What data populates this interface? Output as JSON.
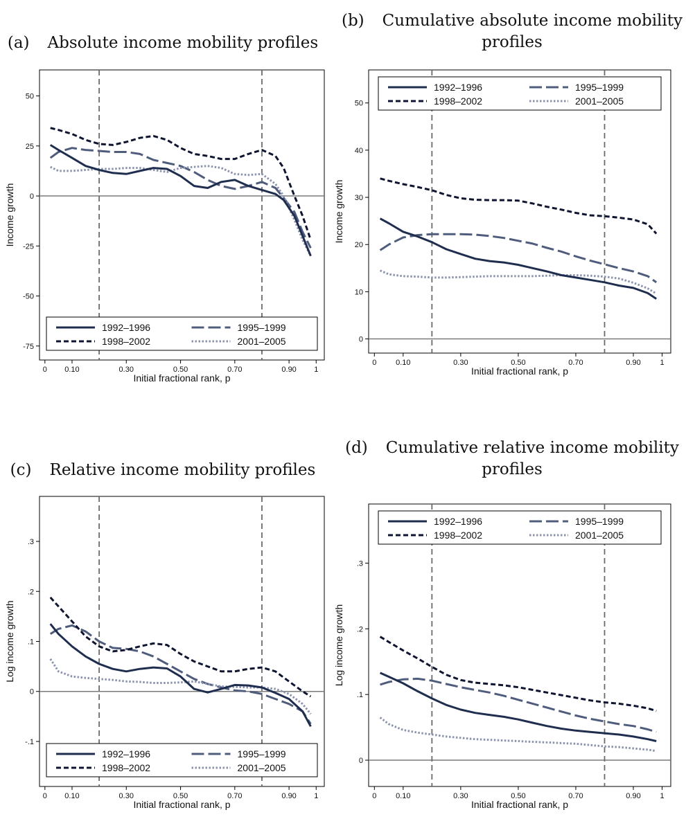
{
  "colors": {
    "1992-1996": "#1f2d4f",
    "1995-1999": "#4f5c7c",
    "1998-2002": "#0f1530",
    "2001-2005": "#8b93ad",
    "zero_line": "#7a7a7a",
    "vline": "#6a6a6a"
  },
  "chart_data": [
    {
      "type": "line",
      "panel": "(a)",
      "title": "Absolute income mobility profiles",
      "xlabel": "Initial fractional rank, p",
      "ylabel": "Income growth",
      "xlim": [
        -0.02,
        1.03
      ],
      "ylim": [
        -82,
        63
      ],
      "xticks": [
        0,
        0.1,
        0.3,
        0.5,
        0.7,
        0.9,
        1
      ],
      "xtick_labels": [
        "0",
        "0.10",
        "0.30",
        "0.50",
        "0.70",
        "0.90",
        "1"
      ],
      "yticks": [
        50,
        25,
        0,
        -25,
        -50,
        -75
      ],
      "ytick_labels": [
        "50",
        "25",
        "0",
        "-25",
        "-50",
        "-75"
      ],
      "zero_line": 0,
      "vlines": [
        0.2,
        0.8
      ],
      "legend": "bottom",
      "series": [
        {
          "name": "1992–1996",
          "style": "solid",
          "x": [
            0.02,
            0.05,
            0.1,
            0.15,
            0.2,
            0.25,
            0.3,
            0.35,
            0.4,
            0.45,
            0.5,
            0.55,
            0.6,
            0.65,
            0.7,
            0.75,
            0.8,
            0.85,
            0.88,
            0.92,
            0.95,
            0.98
          ],
          "y": [
            25.5,
            23,
            19,
            15,
            13,
            11.5,
            11,
            12.5,
            14,
            13.5,
            10,
            5,
            4,
            7,
            8,
            5,
            3,
            1,
            -2,
            -10,
            -20,
            -30
          ]
        },
        {
          "name": "1995–1999",
          "style": "longdash",
          "x": [
            0.02,
            0.05,
            0.1,
            0.15,
            0.2,
            0.25,
            0.3,
            0.35,
            0.4,
            0.45,
            0.5,
            0.55,
            0.6,
            0.65,
            0.7,
            0.75,
            0.8,
            0.85,
            0.88,
            0.92,
            0.95,
            0.98
          ],
          "y": [
            19,
            22,
            24,
            23,
            22.5,
            22,
            22,
            21,
            18,
            16.5,
            15,
            12,
            8,
            5,
            3.5,
            5,
            7,
            4,
            -1,
            -8,
            -18,
            -26
          ]
        },
        {
          "name": "1998–2002",
          "style": "dash",
          "x": [
            0.02,
            0.05,
            0.1,
            0.15,
            0.2,
            0.25,
            0.3,
            0.35,
            0.4,
            0.45,
            0.5,
            0.55,
            0.6,
            0.65,
            0.7,
            0.75,
            0.8,
            0.85,
            0.88,
            0.92,
            0.95,
            0.98
          ],
          "y": [
            34,
            33,
            31,
            28,
            26,
            25.5,
            27,
            29,
            30,
            28,
            24,
            21,
            20,
            18.5,
            18.5,
            21,
            23,
            20,
            14,
            0,
            -10,
            -22
          ]
        },
        {
          "name": "2001–2005",
          "style": "dot",
          "x": [
            0.02,
            0.05,
            0.1,
            0.15,
            0.2,
            0.25,
            0.3,
            0.35,
            0.4,
            0.45,
            0.5,
            0.55,
            0.6,
            0.65,
            0.7,
            0.75,
            0.8,
            0.85,
            0.88,
            0.92,
            0.95,
            0.98
          ],
          "y": [
            14.5,
            12.5,
            12.5,
            13,
            13.5,
            13.5,
            14,
            14,
            13,
            12,
            14,
            14.5,
            15,
            14,
            11,
            10.5,
            11,
            6,
            0,
            -12,
            -22,
            -30
          ]
        }
      ]
    },
    {
      "type": "line",
      "panel": "(b)",
      "title": "Cumulative absolute income mobility profiles",
      "xlabel": "Initial fractional rank, p",
      "ylabel": "Income growth",
      "xlim": [
        -0.02,
        1.03
      ],
      "ylim": [
        -3,
        57
      ],
      "xticks": [
        0,
        0.1,
        0.3,
        0.5,
        0.7,
        0.9,
        1
      ],
      "xtick_labels": [
        "0",
        "0.10",
        "0.30",
        "0.50",
        "0.70",
        "0.90",
        "1"
      ],
      "yticks": [
        50,
        40,
        30,
        20,
        10,
        0
      ],
      "ytick_labels": [
        "50",
        "40",
        "30",
        "20",
        "10",
        "0"
      ],
      "zero_line": 0,
      "vlines": [
        0.2,
        0.8
      ],
      "legend": "top",
      "series": [
        {
          "name": "1992–1996",
          "style": "solid",
          "x": [
            0.02,
            0.05,
            0.1,
            0.15,
            0.2,
            0.25,
            0.3,
            0.35,
            0.4,
            0.45,
            0.5,
            0.55,
            0.6,
            0.65,
            0.7,
            0.75,
            0.8,
            0.85,
            0.9,
            0.95,
            0.98
          ],
          "y": [
            25.5,
            24.5,
            22.7,
            21.7,
            20.5,
            19,
            18,
            17,
            16.5,
            16.2,
            15.7,
            15,
            14.3,
            13.5,
            13,
            12.5,
            12,
            11.3,
            10.8,
            9.7,
            8.5
          ]
        },
        {
          "name": "1995–1999",
          "style": "longdash",
          "x": [
            0.02,
            0.05,
            0.1,
            0.15,
            0.2,
            0.25,
            0.3,
            0.35,
            0.4,
            0.45,
            0.5,
            0.55,
            0.6,
            0.65,
            0.7,
            0.75,
            0.8,
            0.85,
            0.9,
            0.95,
            0.98
          ],
          "y": [
            18.8,
            20,
            21.5,
            22,
            22.2,
            22.2,
            22.2,
            22.1,
            21.8,
            21.4,
            20.8,
            20.2,
            19.3,
            18.5,
            17.5,
            16.6,
            15.8,
            15,
            14.3,
            13.3,
            12
          ]
        },
        {
          "name": "1998–2002",
          "style": "dash",
          "x": [
            0.02,
            0.05,
            0.1,
            0.15,
            0.2,
            0.25,
            0.3,
            0.35,
            0.4,
            0.45,
            0.5,
            0.55,
            0.6,
            0.65,
            0.7,
            0.75,
            0.8,
            0.85,
            0.9,
            0.95,
            0.98
          ],
          "y": [
            34,
            33.5,
            32.8,
            32.2,
            31.5,
            30.5,
            29.8,
            29.5,
            29.4,
            29.4,
            29.3,
            28.7,
            28,
            27.4,
            26.7,
            26.2,
            26,
            25.7,
            25.3,
            24.3,
            22.3
          ]
        },
        {
          "name": "2001–2005",
          "style": "dot",
          "x": [
            0.02,
            0.05,
            0.1,
            0.15,
            0.2,
            0.25,
            0.3,
            0.35,
            0.4,
            0.45,
            0.5,
            0.55,
            0.6,
            0.65,
            0.7,
            0.75,
            0.8,
            0.85,
            0.9,
            0.95,
            0.98
          ],
          "y": [
            14.5,
            13.7,
            13.3,
            13.2,
            13,
            13,
            13.1,
            13.2,
            13.3,
            13.3,
            13.3,
            13.3,
            13.4,
            13.5,
            13.5,
            13.4,
            13.2,
            12.8,
            11.9,
            10.7,
            9.6
          ]
        }
      ]
    },
    {
      "type": "line",
      "panel": "(c)",
      "title": "Relative income mobility profiles",
      "xlabel": "Initial fractional rank, p",
      "ylabel": "Log income growth",
      "xlim": [
        -0.02,
        1.03
      ],
      "ylim": [
        -0.19,
        0.39
      ],
      "xticks": [
        0,
        0.1,
        0.3,
        0.5,
        0.7,
        0.9,
        1
      ],
      "xtick_labels": [
        "0",
        "0.10",
        "0.30",
        "0.50",
        "0.70",
        "0.90",
        "1"
      ],
      "yticks": [
        0.3,
        0.2,
        0.1,
        0,
        -0.1
      ],
      "ytick_labels": [
        ".3",
        ".2",
        ".1",
        "0",
        "-.1"
      ],
      "zero_line": 0,
      "vlines": [
        0.2,
        0.8
      ],
      "legend": "bottom",
      "series": [
        {
          "name": "1992–1996",
          "style": "solid",
          "x": [
            0.02,
            0.05,
            0.1,
            0.15,
            0.2,
            0.25,
            0.3,
            0.35,
            0.4,
            0.45,
            0.5,
            0.55,
            0.6,
            0.65,
            0.7,
            0.75,
            0.8,
            0.85,
            0.9,
            0.95,
            0.98
          ],
          "y": [
            0.135,
            0.115,
            0.09,
            0.07,
            0.055,
            0.045,
            0.04,
            0.045,
            0.048,
            0.046,
            0.03,
            0.005,
            -0.002,
            0.005,
            0.013,
            0.012,
            0.008,
            -0.003,
            -0.015,
            -0.04,
            -0.07
          ]
        },
        {
          "name": "1995–1999",
          "style": "longdash",
          "x": [
            0.02,
            0.05,
            0.1,
            0.15,
            0.2,
            0.25,
            0.3,
            0.35,
            0.4,
            0.45,
            0.5,
            0.55,
            0.6,
            0.65,
            0.7,
            0.75,
            0.8,
            0.85,
            0.9,
            0.95,
            0.98
          ],
          "y": [
            0.115,
            0.125,
            0.132,
            0.12,
            0.1,
            0.087,
            0.085,
            0.08,
            0.07,
            0.055,
            0.04,
            0.025,
            0.015,
            0.008,
            0.002,
            0,
            -0.005,
            -0.015,
            -0.025,
            -0.04,
            -0.065
          ]
        },
        {
          "name": "1998–2002",
          "style": "dash",
          "x": [
            0.02,
            0.05,
            0.1,
            0.15,
            0.2,
            0.25,
            0.3,
            0.35,
            0.4,
            0.45,
            0.5,
            0.55,
            0.6,
            0.65,
            0.7,
            0.75,
            0.8,
            0.85,
            0.9,
            0.95,
            0.98
          ],
          "y": [
            0.188,
            0.17,
            0.14,
            0.11,
            0.09,
            0.08,
            0.083,
            0.09,
            0.096,
            0.093,
            0.075,
            0.06,
            0.05,
            0.04,
            0.04,
            0.045,
            0.048,
            0.04,
            0.02,
            0,
            -0.01
          ]
        },
        {
          "name": "2001–2005",
          "style": "dot",
          "x": [
            0.02,
            0.05,
            0.1,
            0.15,
            0.2,
            0.25,
            0.3,
            0.35,
            0.4,
            0.45,
            0.5,
            0.55,
            0.6,
            0.65,
            0.7,
            0.75,
            0.8,
            0.85,
            0.9,
            0.95,
            0.98
          ],
          "y": [
            0.065,
            0.04,
            0.03,
            0.027,
            0.025,
            0.023,
            0.02,
            0.019,
            0.017,
            0.017,
            0.018,
            0.02,
            0.015,
            0.01,
            0.009,
            0.008,
            0.008,
            0.005,
            -0.005,
            -0.025,
            -0.045
          ]
        }
      ]
    },
    {
      "type": "line",
      "panel": "(d)",
      "title": "Cumulative relative income mobility profiles",
      "xlabel": "Initial fractional rank, p",
      "ylabel": "Log income growth",
      "xlim": [
        -0.02,
        1.03
      ],
      "ylim": [
        -0.04,
        0.39
      ],
      "xticks": [
        0,
        0.1,
        0.3,
        0.5,
        0.7,
        0.9,
        1
      ],
      "xtick_labels": [
        "0",
        "0.10",
        "0.30",
        "0.50",
        "0.70",
        "0.90",
        "1"
      ],
      "yticks": [
        0.3,
        0.2,
        0.1,
        0
      ],
      "ytick_labels": [
        ".3",
        ".2",
        ".1",
        "0"
      ],
      "zero_line": 0,
      "vlines": [
        0.2,
        0.8
      ],
      "legend": "top",
      "series": [
        {
          "name": "1992–1996",
          "style": "solid",
          "x": [
            0.02,
            0.05,
            0.1,
            0.15,
            0.2,
            0.25,
            0.3,
            0.35,
            0.4,
            0.45,
            0.5,
            0.55,
            0.6,
            0.65,
            0.7,
            0.75,
            0.8,
            0.85,
            0.9,
            0.95,
            0.98
          ],
          "y": [
            0.133,
            0.127,
            0.117,
            0.105,
            0.094,
            0.084,
            0.077,
            0.072,
            0.069,
            0.066,
            0.062,
            0.057,
            0.052,
            0.048,
            0.045,
            0.043,
            0.041,
            0.039,
            0.036,
            0.032,
            0.029
          ]
        },
        {
          "name": "1995–1999",
          "style": "longdash",
          "x": [
            0.02,
            0.05,
            0.1,
            0.15,
            0.2,
            0.25,
            0.3,
            0.35,
            0.4,
            0.45,
            0.5,
            0.55,
            0.6,
            0.65,
            0.7,
            0.75,
            0.8,
            0.85,
            0.9,
            0.95,
            0.98
          ],
          "y": [
            0.115,
            0.119,
            0.123,
            0.124,
            0.121,
            0.116,
            0.111,
            0.107,
            0.103,
            0.098,
            0.092,
            0.086,
            0.08,
            0.074,
            0.068,
            0.063,
            0.059,
            0.055,
            0.052,
            0.047,
            0.043
          ]
        },
        {
          "name": "1998–2002",
          "style": "dash",
          "x": [
            0.02,
            0.05,
            0.1,
            0.15,
            0.2,
            0.25,
            0.3,
            0.35,
            0.4,
            0.45,
            0.5,
            0.55,
            0.6,
            0.65,
            0.7,
            0.75,
            0.8,
            0.85,
            0.9,
            0.95,
            0.98
          ],
          "y": [
            0.188,
            0.18,
            0.167,
            0.155,
            0.142,
            0.13,
            0.122,
            0.118,
            0.116,
            0.114,
            0.111,
            0.107,
            0.103,
            0.099,
            0.095,
            0.091,
            0.088,
            0.086,
            0.083,
            0.079,
            0.075
          ]
        },
        {
          "name": "2001–2005",
          "style": "dot",
          "x": [
            0.02,
            0.05,
            0.1,
            0.15,
            0.2,
            0.25,
            0.3,
            0.35,
            0.4,
            0.45,
            0.5,
            0.55,
            0.6,
            0.65,
            0.7,
            0.75,
            0.8,
            0.85,
            0.9,
            0.95,
            0.98
          ],
          "y": [
            0.065,
            0.055,
            0.046,
            0.042,
            0.039,
            0.036,
            0.034,
            0.032,
            0.031,
            0.03,
            0.029,
            0.028,
            0.027,
            0.026,
            0.025,
            0.023,
            0.021,
            0.02,
            0.018,
            0.016,
            0.014
          ]
        }
      ]
    }
  ]
}
